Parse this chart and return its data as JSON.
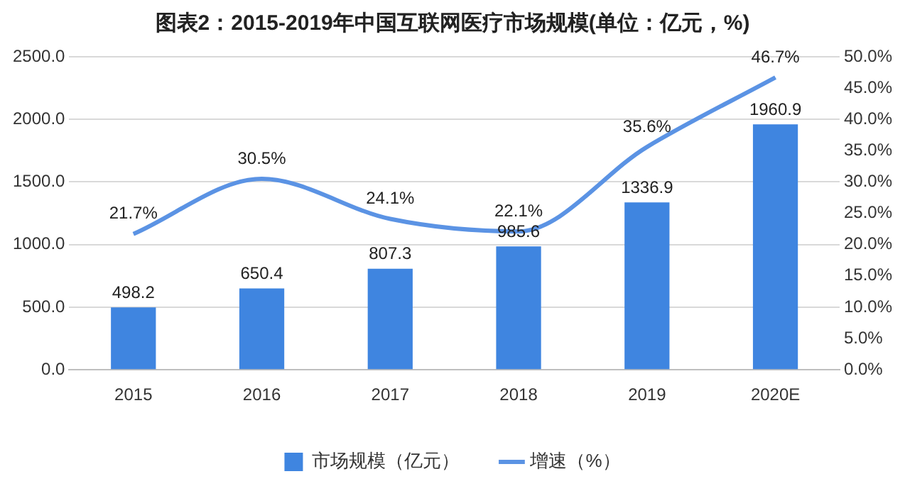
{
  "chart_data": {
    "type": "bar",
    "title": "图表2：2015-2019年中国互联网医疗市场规模(单位：亿元，%)",
    "categories": [
      "2015",
      "2016",
      "2017",
      "2018",
      "2019",
      "2020E"
    ],
    "series": [
      {
        "name": "市场规模（亿元）",
        "color": "#3f85e0",
        "values": [
          498.2,
          650.4,
          807.3,
          985.6,
          1336.9,
          1960.9
        ],
        "value_labels": [
          "498.2",
          "650.4",
          "807.3",
          "985.6",
          "1336.9",
          "1960.9"
        ]
      },
      {
        "name": "增速（%）",
        "type": "line",
        "axis": "y2",
        "color": "#5b93e4",
        "values": [
          21.7,
          30.5,
          24.1,
          22.1,
          35.6,
          46.7
        ],
        "value_labels": [
          "21.7%",
          "30.5%",
          "24.1%",
          "22.1%",
          "35.6%",
          "46.7%"
        ]
      }
    ],
    "ylim": [
      0,
      2500
    ],
    "yticks": [
      {
        "value": 0,
        "label": "0.0"
      },
      {
        "value": 500,
        "label": "500.0"
      },
      {
        "value": 1000,
        "label": "1000.0"
      },
      {
        "value": 1500,
        "label": "1500.0"
      },
      {
        "value": 2000,
        "label": "2000.0"
      },
      {
        "value": 2500,
        "label": "2500.0"
      }
    ],
    "y2lim": [
      0,
      50
    ],
    "y2ticks": [
      {
        "value": 0,
        "label": "0.0%"
      },
      {
        "value": 5,
        "label": "5.0%"
      },
      {
        "value": 10,
        "label": "10.0%"
      },
      {
        "value": 15,
        "label": "15.0%"
      },
      {
        "value": 20,
        "label": "20.0%"
      },
      {
        "value": 25,
        "label": "25.0%"
      },
      {
        "value": 30,
        "label": "30.0%"
      },
      {
        "value": 35,
        "label": "35.0%"
      },
      {
        "value": 40,
        "label": "40.0%"
      },
      {
        "value": 45,
        "label": "45.0%"
      },
      {
        "value": 50,
        "label": "50.0%"
      }
    ],
    "grid": "y",
    "legend": "bottom",
    "marker": "none",
    "line_style": "solid"
  }
}
